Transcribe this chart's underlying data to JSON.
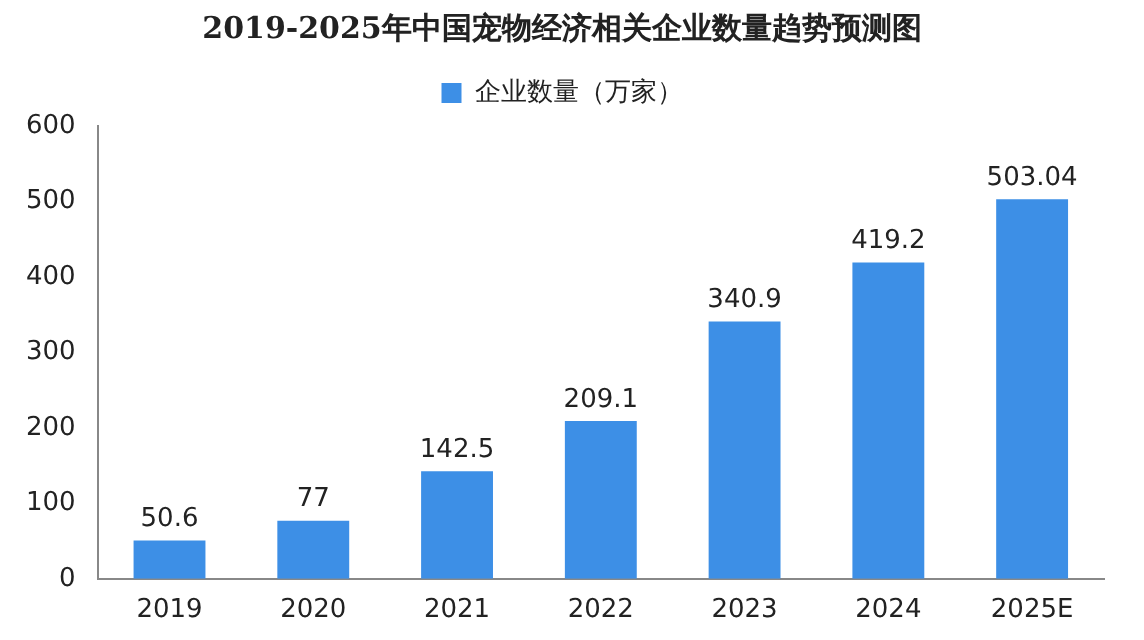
{
  "chart_data": {
    "type": "bar",
    "title": "2019-2025年中国宠物经济相关企业数量趋势预测图",
    "categories": [
      "2019",
      "2020",
      "2021",
      "2022",
      "2023",
      "2024",
      "2025E"
    ],
    "series": [
      {
        "name": "企业数量（万家）",
        "color": "#3d8fe6",
        "values": [
          50.6,
          77,
          142.5,
          209.1,
          340.9,
          419.2,
          503.04
        ]
      }
    ],
    "ylim": [
      0,
      600
    ],
    "yticks": [
      0,
      100,
      200,
      300,
      400,
      500,
      600
    ],
    "grid": false,
    "legend": "top",
    "data_labels": true
  }
}
